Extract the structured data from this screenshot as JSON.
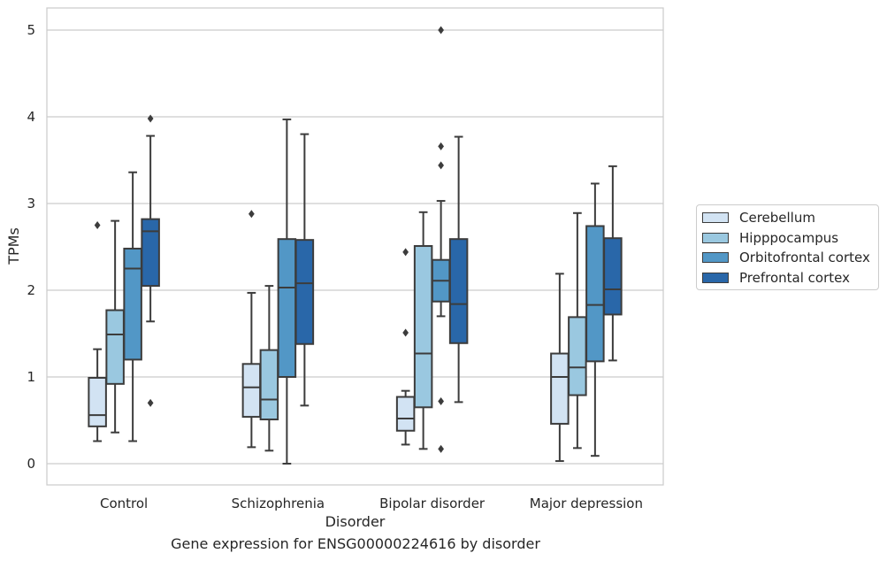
{
  "caption": "Gene expression for ENSG00000224616 by disorder",
  "chart_data": {
    "type": "box",
    "xlabel": "Disorder",
    "ylabel": "TPMs",
    "ylim": [
      -0.25,
      5.25
    ],
    "yticks": [
      0,
      1,
      2,
      3,
      4,
      5
    ],
    "grid": true,
    "legend_position": "right",
    "categories": [
      "Control",
      "Schizophrenia",
      "Bipolar disorder",
      "Major depression"
    ],
    "series": [
      {
        "name": "Cerebellum",
        "color": "#d2e3f3",
        "boxes": [
          {
            "whislo": 0.26,
            "q1": 0.43,
            "med": 0.56,
            "q3": 0.99,
            "whishi": 1.32,
            "fliers": [
              2.75
            ]
          },
          {
            "whislo": 0.19,
            "q1": 0.54,
            "med": 0.88,
            "q3": 1.15,
            "whishi": 1.97,
            "fliers": [
              2.88
            ]
          },
          {
            "whislo": 0.22,
            "q1": 0.38,
            "med": 0.52,
            "q3": 0.77,
            "whishi": 0.84,
            "fliers": [
              1.51,
              2.44
            ]
          },
          {
            "whislo": 0.03,
            "q1": 0.46,
            "med": 1.0,
            "q3": 1.27,
            "whishi": 2.19,
            "fliers": []
          }
        ]
      },
      {
        "name": "Hipppocampus",
        "color": "#9ac8e0",
        "boxes": [
          {
            "whislo": 0.36,
            "q1": 0.92,
            "med": 1.49,
            "q3": 1.77,
            "whishi": 2.8,
            "fliers": []
          },
          {
            "whislo": 0.15,
            "q1": 0.51,
            "med": 0.74,
            "q3": 1.31,
            "whishi": 2.05,
            "fliers": []
          },
          {
            "whislo": 0.17,
            "q1": 0.65,
            "med": 1.27,
            "q3": 2.51,
            "whishi": 2.9,
            "fliers": []
          },
          {
            "whislo": 0.18,
            "q1": 0.79,
            "med": 1.11,
            "q3": 1.69,
            "whishi": 2.89,
            "fliers": []
          }
        ]
      },
      {
        "name": "Orbitofrontal cortex",
        "color": "#5297c6",
        "boxes": [
          {
            "whislo": 0.26,
            "q1": 1.2,
            "med": 2.25,
            "q3": 2.48,
            "whishi": 3.36,
            "fliers": []
          },
          {
            "whislo": 0.0,
            "q1": 1.0,
            "med": 2.03,
            "q3": 2.59,
            "whishi": 3.97,
            "fliers": []
          },
          {
            "whislo": 1.7,
            "q1": 1.87,
            "med": 2.11,
            "q3": 2.35,
            "whishi": 3.03,
            "fliers": [
              0.72,
              0.17,
              3.44,
              3.66,
              5.0
            ]
          },
          {
            "whislo": 0.09,
            "q1": 1.18,
            "med": 1.83,
            "q3": 2.74,
            "whishi": 3.23,
            "fliers": []
          }
        ]
      },
      {
        "name": "Prefrontal cortex",
        "color": "#2967a9",
        "boxes": [
          {
            "whislo": 1.64,
            "q1": 2.05,
            "med": 2.68,
            "q3": 2.82,
            "whishi": 3.78,
            "fliers": [
              0.7,
              3.98
            ]
          },
          {
            "whislo": 0.67,
            "q1": 1.38,
            "med": 2.08,
            "q3": 2.58,
            "whishi": 3.8,
            "fliers": []
          },
          {
            "whislo": 0.71,
            "q1": 1.39,
            "med": 1.84,
            "q3": 2.59,
            "whishi": 3.77,
            "fliers": []
          },
          {
            "whislo": 1.19,
            "q1": 1.72,
            "med": 2.01,
            "q3": 2.6,
            "whishi": 3.43,
            "fliers": []
          }
        ]
      }
    ]
  }
}
